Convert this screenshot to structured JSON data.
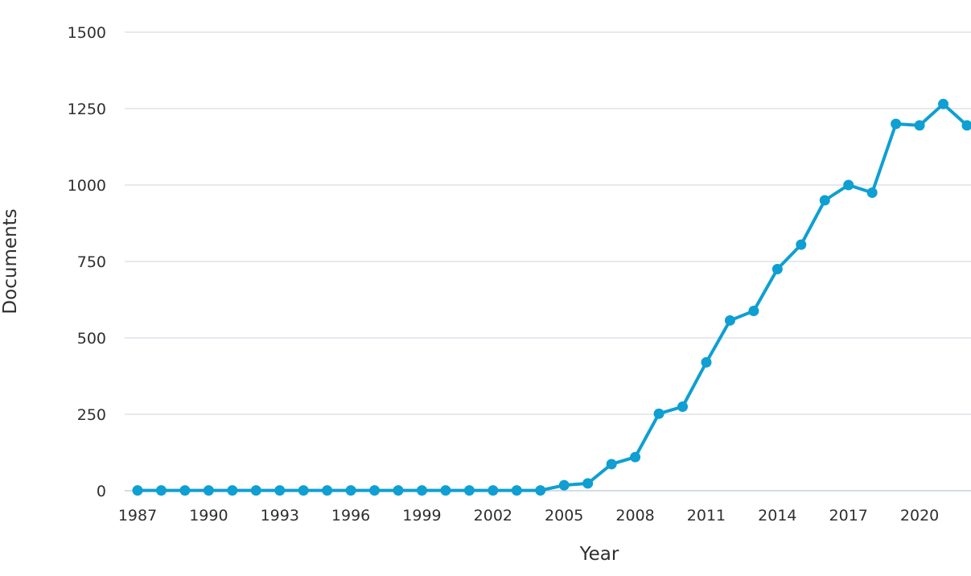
{
  "chart_data": {
    "type": "line",
    "xlabel": "Year",
    "ylabel": "Documents",
    "x": [
      1987,
      1988,
      1989,
      1990,
      1991,
      1992,
      1993,
      1994,
      1995,
      1996,
      1997,
      1998,
      1999,
      2000,
      2001,
      2002,
      2003,
      2004,
      2005,
      2006,
      2007,
      2008,
      2009,
      2010,
      2011,
      2012,
      2013,
      2014,
      2015,
      2016,
      2017,
      2018,
      2019,
      2020,
      2021,
      2022
    ],
    "x_ticks": [
      "1987",
      "1990",
      "1993",
      "1996",
      "1999",
      "2002",
      "2005",
      "2008",
      "2011",
      "2014",
      "2017",
      "2020"
    ],
    "y_ticks": [
      "0",
      "250",
      "500",
      "750",
      "1000",
      "1250",
      "1500"
    ],
    "ylim": [
      0,
      1500
    ],
    "xlim": [
      1987,
      2022
    ],
    "grid": true,
    "series": [
      {
        "values": [
          1,
          1,
          1,
          1,
          1,
          1,
          1,
          1,
          1,
          1,
          1,
          1,
          1,
          1,
          1,
          1,
          1,
          1,
          18,
          24,
          87,
          110,
          252,
          275,
          420,
          557,
          588,
          725,
          805,
          950,
          1000,
          975,
          1200,
          1195,
          1265,
          1195
        ]
      }
    ],
    "colors": {
      "line": "#0f9fd2",
      "grid": "#d6dde3",
      "text": "#2f2f2f"
    }
  }
}
